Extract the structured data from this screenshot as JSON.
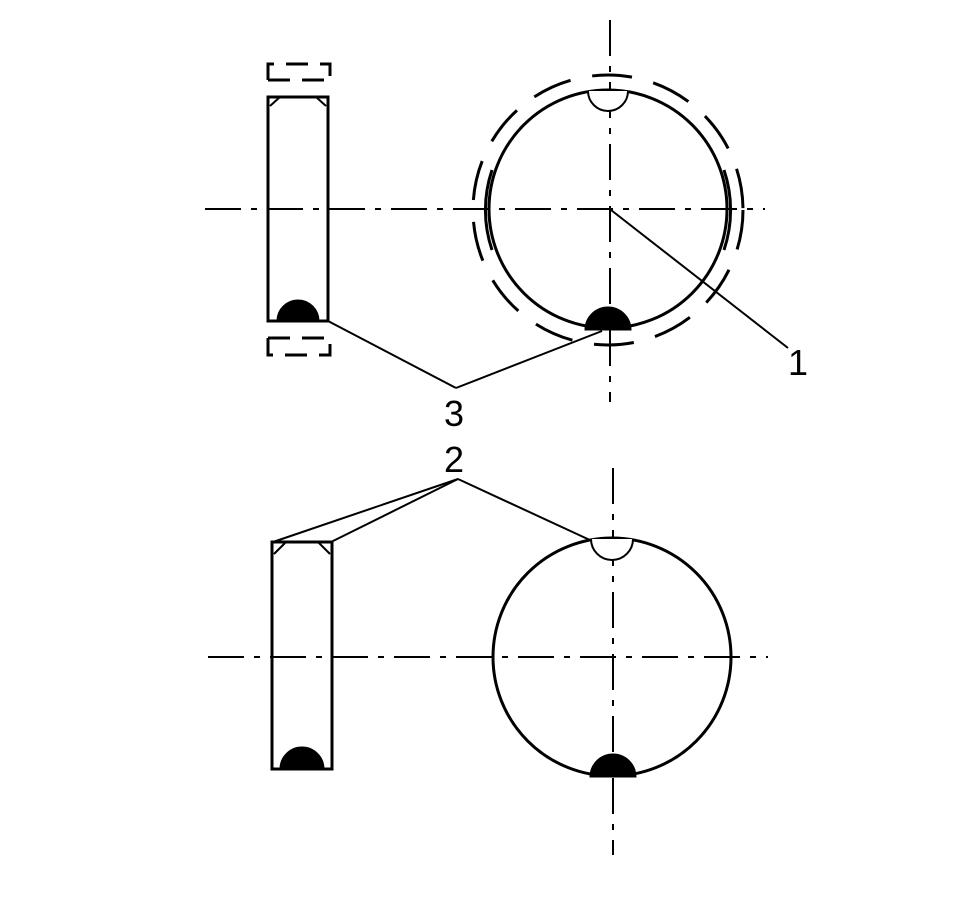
{
  "diagram": {
    "callouts": {
      "one": "1",
      "two": "2",
      "three": "3"
    }
  },
  "colors": {
    "line": "#000000",
    "background": "#ffffff"
  }
}
